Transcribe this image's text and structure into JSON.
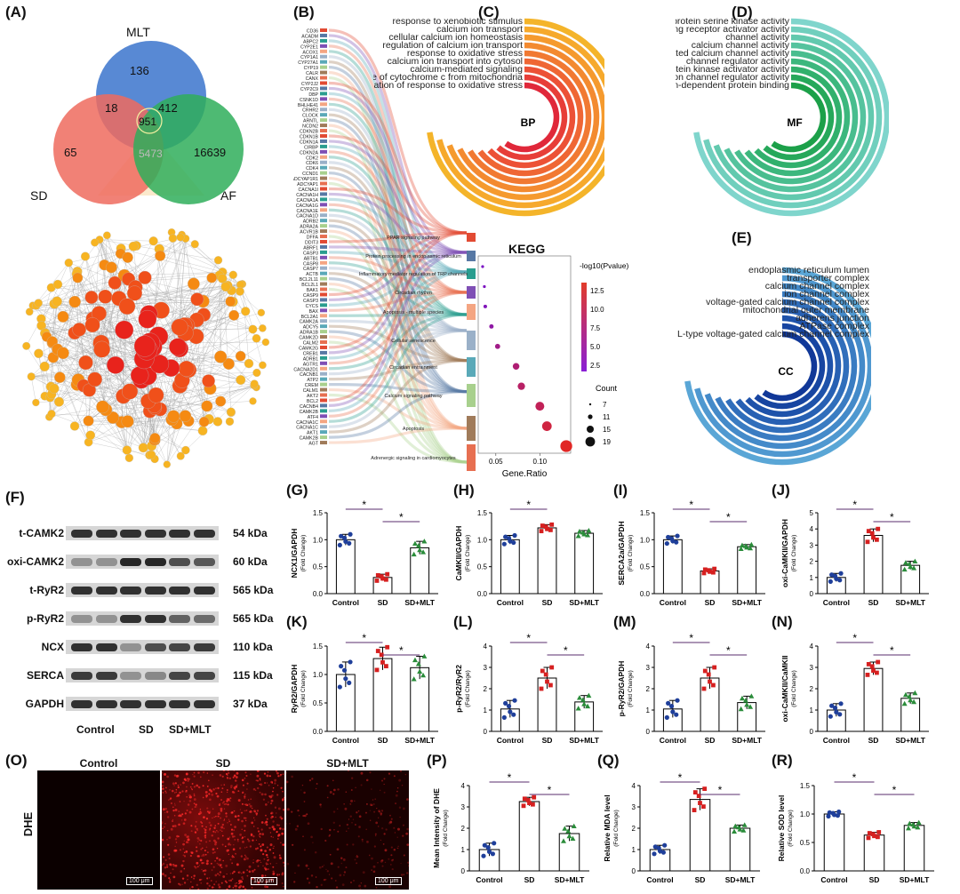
{
  "panels": {
    "A": "(A)",
    "B": "(B)",
    "C": "(C)",
    "D": "(D)",
    "E": "(E)",
    "F": "(F)",
    "G": "(G)",
    "H": "(H)",
    "I": "(I)",
    "J": "(J)",
    "K": "(K)",
    "L": "(L)",
    "M": "(M)",
    "N": "(N)",
    "O": "(O)",
    "P": "(P)",
    "Q": "(Q)",
    "R": "(R)"
  },
  "venn": {
    "sets": [
      "MLT",
      "SD",
      "AF"
    ],
    "counts": {
      "mlt_only": "136",
      "mlt_sd": "18",
      "mlt_af": "412",
      "all": "951",
      "sd_only": "65",
      "af_only": "16639",
      "sd_af": "5473"
    }
  },
  "sankey": {
    "genes": [
      "CD36",
      "ACADM",
      "ABPC2",
      "CYP2E1",
      "ACOX1",
      "CYP1A1",
      "CYP27A1",
      "CYP19",
      "CALR",
      "CANX",
      "CYP2J2",
      "CYP2C9",
      "DBP",
      "CSNK1D",
      "BHLHE41",
      "CRHR2",
      "CLOCK",
      "ARNTL",
      "NCDN2",
      "CDKN2B",
      "CDKN1B",
      "CDKN1A",
      "CIRBP",
      "CDKN2A",
      "CDK2",
      "CDK6",
      "CDK4",
      "CCND1",
      "ADCYAP1R1",
      "ADCYAP1",
      "CACNA1I",
      "CACNA1H",
      "CACNA1A",
      "CACNA1G",
      "CACNA1E",
      "CACNA1D",
      "ADRB2",
      "ADRA2A",
      "ACVR1B",
      "DFFA",
      "DDIT3",
      "ABRF1",
      "CASP3",
      "ABTB1",
      "CASP8",
      "CASP7",
      "ACTB",
      "BCL2L11",
      "BCL2L1",
      "BAK1",
      "CASP9",
      "CASP3",
      "CYCS",
      "BAX",
      "BCL2A1",
      "CAMK2A",
      "ADCY5",
      "ADRA1B",
      "CAMK2D",
      "CALM2",
      "CAMK2G",
      "CREB1",
      "ADRB1",
      "AGTR1",
      "CACNA2D1",
      "CACNB1",
      "ATP2",
      "CREM",
      "CALM1",
      "AKT2",
      "BCL2",
      "CACNB4",
      "CAMK2B",
      "ATF4",
      "CACNA1C",
      "CACNA1C",
      "AKT1",
      "CAMK2B",
      "AGT"
    ],
    "pathways": [
      "PPAR signaling pathway",
      "Protein processing in endoplasmic reticulum",
      "Inflammatory mediator regulation of TRP channels",
      "Circadian rhythm",
      "Apoptosis - multiple species",
      "Cellular senescence",
      "Circadian entrainment",
      "Calcium signaling pathway",
      "Apoptosis",
      "Adrenergic signaling in cardiomyocytes"
    ]
  },
  "go": {
    "BP": {
      "tag": "BP",
      "terms": [
        "response to xenobiotic stimulus",
        "calcium ion transport",
        "cellular calcium ion homeostasis",
        "regulation of calcium ion transport",
        "response to oxidative stress",
        "calcium ion transport into cytosol",
        "calcium-mediated signaling",
        "release of cytochrome c from mitochondria",
        "regulation of response to oxidative stress"
      ]
    },
    "MF": {
      "tag": "MF",
      "terms": [
        "protein serine kinase activity",
        "signaling receptor activator activity",
        "channel activity",
        "calcium channel activity",
        "voltage-gated calcium channel activity",
        "channel regulator activity",
        "protein kinase activator activity",
        "ion channel regulator activity",
        "calcium-dependent protein binding"
      ]
    },
    "CC": {
      "tag": "CC",
      "terms": [
        "endoplasmic reticulum lumen",
        "transporter complex",
        "calcium channel complex",
        "ion channel complex",
        "voltage-gated calcium channel complex",
        "mitochondrial outer membrane",
        "adherens junction",
        "ATPase complex",
        "L-type voltage-gated calcium channel complex"
      ]
    }
  },
  "kegg": {
    "title": "KEGG",
    "xlabel": "Gene.Ratio",
    "color_legend_title": "-log10(Pvalue)",
    "color_ticks": [
      "12.5",
      "10.0",
      "7.5",
      "5.0",
      "2.5"
    ],
    "size_legend_title": "Count",
    "size_ticks": [
      "7",
      "11",
      "15",
      "19"
    ],
    "x_ticks": [
      "0.05",
      "0.10"
    ],
    "points": [
      {
        "pathway": "PPAR signaling pathway",
        "ratio": 0.035,
        "neglogp": 2.3,
        "count": 7
      },
      {
        "pathway": "Protein processing in endoplasmic reticulum",
        "ratio": 0.037,
        "neglogp": 2.6,
        "count": 7
      },
      {
        "pathway": "Inflammatory mediator regulation of TRP channels",
        "ratio": 0.038,
        "neglogp": 3.0,
        "count": 8
      },
      {
        "pathway": "Circadian rhythm",
        "ratio": 0.045,
        "neglogp": 4.5,
        "count": 9
      },
      {
        "pathway": "Apoptosis - multiple species",
        "ratio": 0.052,
        "neglogp": 6.5,
        "count": 10
      },
      {
        "pathway": "Cellular senescence",
        "ratio": 0.073,
        "neglogp": 8.0,
        "count": 12
      },
      {
        "pathway": "Circadian entrainment",
        "ratio": 0.079,
        "neglogp": 9.0,
        "count": 13
      },
      {
        "pathway": "Calcium signaling pathway",
        "ratio": 0.1,
        "neglogp": 10.0,
        "count": 15
      },
      {
        "pathway": "Apoptosis",
        "ratio": 0.108,
        "neglogp": 11.5,
        "count": 16
      },
      {
        "pathway": "Adrenergic signaling in cardiomyocytes",
        "ratio": 0.13,
        "neglogp": 13.5,
        "count": 19
      }
    ]
  },
  "western_blot": {
    "rows": [
      {
        "label": "t-CAMK2",
        "kda": "54 kDa"
      },
      {
        "label": "oxi-CAMK2",
        "kda": "60 kDa"
      },
      {
        "label": "t-RyR2",
        "kda": "565 kDa"
      },
      {
        "label": "p-RyR2",
        "kda": "565 kDa"
      },
      {
        "label": "NCX",
        "kda": "110 kDa"
      },
      {
        "label": "SERCA",
        "kda": "115 kDa"
      },
      {
        "label": "GAPDH",
        "kda": "37 kDa"
      }
    ],
    "groups": [
      "Control",
      "SD",
      "SD+MLT"
    ]
  },
  "dhe": {
    "row_label": "DHE",
    "titles": [
      "Control",
      "SD",
      "SD+MLT"
    ],
    "scale": "100 μm"
  },
  "chart_data": [
    {
      "panel": "G",
      "type": "bar",
      "categories": [
        "Control",
        "SD",
        "SD+MLT"
      ],
      "values": [
        1.0,
        0.3,
        0.85
      ],
      "errors": [
        0.1,
        0.06,
        0.12
      ],
      "ylabel": "NCX1/GAPDH",
      "ylabel2": "(Fold Change)",
      "ylim": [
        0,
        1.5
      ],
      "ticks": [
        "0.0",
        "0.5",
        "1.0",
        "1.5"
      ],
      "sig": [
        [
          0,
          1
        ],
        [
          1,
          2
        ]
      ],
      "colors": [
        "#1f3f9a",
        "#d62020",
        "#2a8c3a"
      ]
    },
    {
      "panel": "H",
      "type": "bar",
      "categories": [
        "Control",
        "SD",
        "SD+MLT"
      ],
      "values": [
        1.0,
        1.22,
        1.12
      ],
      "errors": [
        0.08,
        0.06,
        0.05
      ],
      "ylabel": "CaMKII/GAPDH",
      "ylabel2": "(Fold Change)",
      "ylim": [
        0,
        1.5
      ],
      "ticks": [
        "0.0",
        "0.5",
        "1.0",
        "1.5"
      ],
      "sig": [
        [
          0,
          1
        ]
      ],
      "colors": [
        "#1f3f9a",
        "#d62020",
        "#2a8c3a"
      ]
    },
    {
      "panel": "I",
      "type": "bar",
      "categories": [
        "Control",
        "SD",
        "SD+MLT"
      ],
      "values": [
        1.0,
        0.42,
        0.87
      ],
      "errors": [
        0.07,
        0.04,
        0.04
      ],
      "ylabel": "SERCA2a/GAPDH",
      "ylabel2": "(Fold Change)",
      "ylim": [
        0,
        1.5
      ],
      "ticks": [
        "0.0",
        "0.5",
        "1.0",
        "1.5"
      ],
      "sig": [
        [
          0,
          1
        ],
        [
          1,
          2
        ]
      ],
      "colors": [
        "#1f3f9a",
        "#d62020",
        "#2a8c3a"
      ]
    },
    {
      "panel": "J",
      "type": "bar",
      "categories": [
        "Control",
        "SD",
        "SD+MLT"
      ],
      "values": [
        1.0,
        3.6,
        1.75
      ],
      "errors": [
        0.25,
        0.4,
        0.25
      ],
      "ylabel": "oxi-CaMKII/GAPDH",
      "ylabel2": "(Fold Change)",
      "ylim": [
        0,
        5
      ],
      "ticks": [
        "0",
        "1",
        "2",
        "3",
        "4",
        "5"
      ],
      "sig": [
        [
          0,
          1
        ],
        [
          1,
          2
        ]
      ],
      "colors": [
        "#1f3f9a",
        "#d62020",
        "#2a8c3a"
      ]
    },
    {
      "panel": "K",
      "type": "bar",
      "categories": [
        "Control",
        "SD",
        "SD+MLT"
      ],
      "values": [
        1.0,
        1.28,
        1.12
      ],
      "errors": [
        0.22,
        0.2,
        0.2
      ],
      "ylabel": "RyR2/GAPDH",
      "ylabel2": "(Fold Change)",
      "ylim": [
        0,
        1.5
      ],
      "ticks": [
        "0.0",
        "0.5",
        "1.0",
        "1.5"
      ],
      "sig": [
        [
          0,
          1
        ],
        [
          1,
          2
        ]
      ],
      "colors": [
        "#1f3f9a",
        "#d62020",
        "#2a8c3a"
      ]
    },
    {
      "panel": "L",
      "type": "bar",
      "categories": [
        "Control",
        "SD",
        "SD+MLT"
      ],
      "values": [
        1.05,
        2.5,
        1.38
      ],
      "errors": [
        0.4,
        0.5,
        0.3
      ],
      "ylabel": "p-RyR2/RyR2",
      "ylabel2": "(Fold Change)",
      "ylim": [
        0,
        4
      ],
      "ticks": [
        "0",
        "1",
        "2",
        "3",
        "4"
      ],
      "sig": [
        [
          0,
          1
        ],
        [
          1,
          2
        ]
      ],
      "colors": [
        "#1f3f9a",
        "#d62020",
        "#2a8c3a"
      ]
    },
    {
      "panel": "M",
      "type": "bar",
      "categories": [
        "Control",
        "SD",
        "SD+MLT"
      ],
      "values": [
        1.05,
        2.5,
        1.35
      ],
      "errors": [
        0.4,
        0.5,
        0.3
      ],
      "ylabel": "p-RyR2/GAPDH",
      "ylabel2": "(Fold Change)",
      "ylim": [
        0,
        4
      ],
      "ticks": [
        "0",
        "1",
        "2",
        "3",
        "4"
      ],
      "sig": [
        [
          0,
          1
        ],
        [
          1,
          2
        ]
      ],
      "colors": [
        "#1f3f9a",
        "#d62020",
        "#2a8c3a"
      ]
    },
    {
      "panel": "N",
      "type": "bar",
      "categories": [
        "Control",
        "SD",
        "SD+MLT"
      ],
      "values": [
        1.0,
        2.95,
        1.55
      ],
      "errors": [
        0.3,
        0.3,
        0.25
      ],
      "ylabel": "oxi-CaMKII/CaMKII",
      "ylabel2": "(Fold Change)",
      "ylim": [
        0,
        4
      ],
      "ticks": [
        "0",
        "1",
        "2",
        "3",
        "4"
      ],
      "sig": [
        [
          0,
          1
        ],
        [
          1,
          2
        ]
      ],
      "colors": [
        "#1f3f9a",
        "#d62020",
        "#2a8c3a"
      ]
    },
    {
      "panel": "P",
      "type": "bar",
      "categories": [
        "Control",
        "SD",
        "SD+MLT"
      ],
      "values": [
        1.0,
        3.25,
        1.75
      ],
      "errors": [
        0.3,
        0.2,
        0.35
      ],
      "ylabel": "Mean Intensity of DHE",
      "ylabel2": "(Fold Change)",
      "ylim": [
        0,
        4
      ],
      "ticks": [
        "0",
        "1",
        "2",
        "3",
        "4"
      ],
      "sig": [
        [
          0,
          1
        ],
        [
          1,
          2
        ]
      ],
      "colors": [
        "#1f3f9a",
        "#d62020",
        "#2a8c3a"
      ]
    },
    {
      "panel": "Q",
      "type": "bar",
      "categories": [
        "Control",
        "SD",
        "SD+MLT"
      ],
      "values": [
        1.0,
        3.35,
        2.0
      ],
      "errors": [
        0.2,
        0.5,
        0.15
      ],
      "ylabel": "Relative MDA level",
      "ylabel2": "(Fold Change)",
      "ylim": [
        0,
        4
      ],
      "ticks": [
        "0",
        "1",
        "2",
        "3",
        "4"
      ],
      "sig": [
        [
          0,
          1
        ],
        [
          1,
          2
        ]
      ],
      "colors": [
        "#1f3f9a",
        "#d62020",
        "#2a8c3a"
      ]
    },
    {
      "panel": "R",
      "type": "bar",
      "categories": [
        "Control",
        "SD",
        "SD+MLT"
      ],
      "values": [
        1.0,
        0.63,
        0.8
      ],
      "errors": [
        0.04,
        0.05,
        0.05
      ],
      "ylabel": "Relative SOD level",
      "ylabel2": "(Fold Change)",
      "ylim": [
        0,
        1.5
      ],
      "ticks": [
        "0.0",
        "0.5",
        "1.0",
        "1.5"
      ],
      "sig": [
        [
          0,
          1
        ],
        [
          1,
          2
        ]
      ],
      "colors": [
        "#1f3f9a",
        "#d62020",
        "#2a8c3a"
      ]
    }
  ]
}
